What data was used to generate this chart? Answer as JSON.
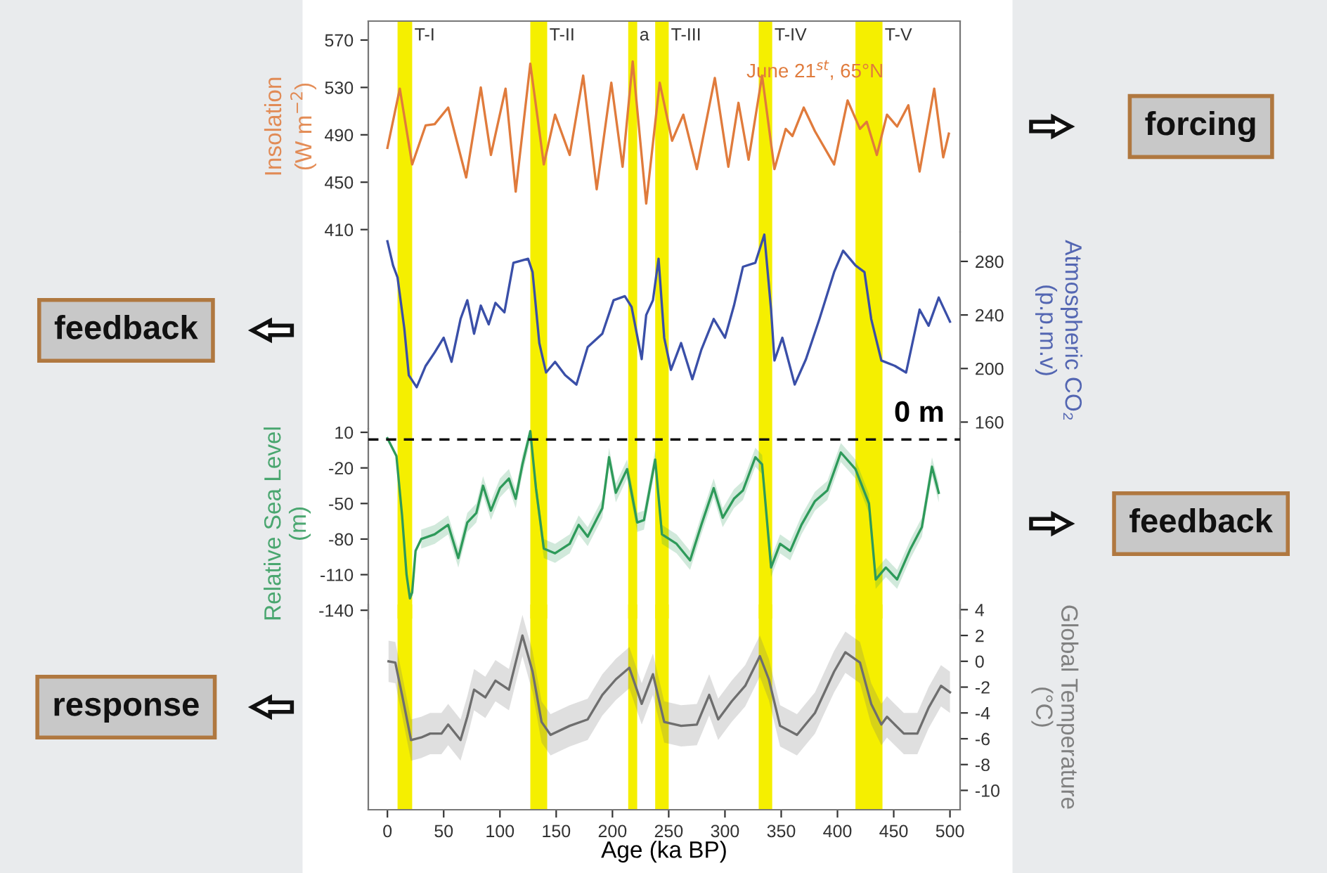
{
  "chart_data": [
    {
      "type": "line",
      "ylabel": "Insolation\n(W m$^{−2}$)",
      "xlim": [
        -17,
        509
      ],
      "ylim": [
        408,
        586
      ],
      "yticks": [
        410,
        450,
        490,
        530,
        570
      ],
      "tick_labels": "y",
      "series": [
        {
          "color": "#e07b3c",
          "x": [
            0,
            11,
            22,
            34,
            42,
            54,
            70,
            83,
            92,
            105,
            114,
            127,
            139,
            149,
            162,
            174,
            186,
            199,
            209,
            218,
            230,
            242,
            253,
            263,
            275,
            291,
            303,
            312,
            321,
            333,
            344,
            354,
            360,
            370,
            380,
            397,
            409,
            420,
            426,
            435,
            444,
            453,
            463,
            473,
            486,
            494,
            499
          ],
          "values": [
            479,
            529,
            465,
            498,
            499,
            513,
            454,
            530,
            473,
            529,
            442,
            550,
            465,
            507,
            473,
            540,
            444,
            534,
            463,
            552,
            432,
            534,
            485,
            507,
            461,
            538,
            463,
            517,
            469,
            540,
            461,
            495,
            489,
            513,
            493,
            465,
            519,
            495,
            501,
            473,
            507,
            497,
            515,
            459,
            529,
            471,
            491
          ]
        }
      ],
      "bands": [
        {
          "axis": "x",
          "from": 9,
          "to": 22,
          "label": "T-I",
          "color": "#f5ef00"
        },
        {
          "axis": "x",
          "from": 127,
          "to": 142,
          "label": "T-II",
          "color": "#f5ef00"
        },
        {
          "axis": "x",
          "from": 214,
          "to": 222,
          "label": "a",
          "color": "#f5ef00"
        },
        {
          "axis": "x",
          "from": 238,
          "to": 250,
          "label": "T-III",
          "color": "#f5ef00"
        },
        {
          "axis": "x",
          "from": 330,
          "to": 342,
          "label": "T-IV",
          "color": "#f5ef00"
        },
        {
          "axis": "x",
          "from": 416,
          "to": 440,
          "label": "T-V",
          "color": "#f5ef00"
        }
      ],
      "annotations": [
        "June 21$^{st}$, 65°N",
        "forcing"
      ]
    },
    {
      "type": "line",
      "y2label": "Atmospheric CO₂\n(p.p.m.v)",
      "xlim": [
        -17,
        509
      ],
      "y2lim": [
        155,
        302
      ],
      "y2ticks": [
        160,
        200,
        240,
        280
      ],
      "tick_labels": "y",
      "series": [
        {
          "color": "#3a4fa8",
          "axis": "y2",
          "x": [
            0,
            5,
            9,
            15,
            19,
            26,
            34,
            42,
            50,
            57,
            65,
            71,
            77,
            83,
            90,
            96,
            104,
            112,
            125,
            129,
            135,
            141,
            149,
            158,
            168,
            178,
            191,
            201,
            211,
            217,
            226,
            230,
            236,
            241,
            246,
            252,
            261,
            271,
            279,
            290,
            300,
            308,
            316,
            327,
            335,
            341,
            344,
            351,
            362,
            372,
            384,
            397,
            405,
            416,
            424,
            430,
            439,
            451,
            461,
            473,
            481,
            490,
            500
          ],
          "values": [
            295,
            277,
            268,
            230,
            195,
            186,
            202,
            212,
            223,
            205,
            237,
            251,
            226,
            247,
            233,
            249,
            242,
            279,
            282,
            272,
            219,
            197,
            205,
            195,
            188,
            216,
            226,
            251,
            254,
            246,
            207,
            240,
            251,
            282,
            223,
            199,
            219,
            192,
            214,
            237,
            223,
            247,
            276,
            279,
            300,
            244,
            206,
            223,
            188,
            207,
            237,
            272,
            288,
            277,
            272,
            237,
            206,
            202,
            197,
            244,
            232,
            253,
            235
          ]
        }
      ],
      "bands": [
        {
          "axis": "x",
          "from": 9,
          "to": 22,
          "color": "#f5ef00"
        },
        {
          "axis": "x",
          "from": 127,
          "to": 142,
          "color": "#f5ef00"
        },
        {
          "axis": "x",
          "from": 214,
          "to": 222,
          "color": "#f5ef00"
        },
        {
          "axis": "x",
          "from": 238,
          "to": 250,
          "color": "#f5ef00"
        },
        {
          "axis": "x",
          "from": 330,
          "to": 342,
          "color": "#f5ef00"
        },
        {
          "axis": "x",
          "from": 416,
          "to": 440,
          "color": "#f5ef00"
        }
      ],
      "annotations": [
        "feedback"
      ]
    },
    {
      "type": "line",
      "ylabel": "Relative Sea Level\n(m)",
      "xlim": [
        -17,
        509
      ],
      "ylim": [
        -147,
        13
      ],
      "yticks": [
        10,
        -20,
        -50,
        -80,
        -110,
        -140
      ],
      "tick_labels": "y",
      "series": [
        {
          "color": "#2e9a5a",
          "x": [
            0,
            8,
            13,
            17,
            20,
            22,
            25,
            30,
            42,
            54,
            63,
            71,
            79,
            85,
            92,
            100,
            108,
            114,
            120,
            127,
            132,
            139,
            149,
            162,
            170,
            178,
            191,
            197,
            203,
            213,
            222,
            228,
            238,
            244,
            257,
            269,
            279,
            290,
            298,
            308,
            316,
            327,
            333,
            341,
            349,
            358,
            368,
            380,
            391,
            403,
            416,
            428,
            434,
            443,
            453,
            465,
            475,
            484,
            490
          ],
          "values": [
            5,
            -10,
            -60,
            -110,
            -130,
            -125,
            -90,
            -80,
            -76,
            -68,
            -96,
            -66,
            -58,
            -35,
            -56,
            -37,
            -29,
            -46,
            -17,
            11,
            -37,
            -88,
            -92,
            -84,
            -68,
            -78,
            -54,
            -11,
            -41,
            -21,
            -66,
            -64,
            -13,
            -76,
            -84,
            -98,
            -68,
            -37,
            -62,
            -46,
            -39,
            -11,
            -17,
            -104,
            -84,
            -90,
            -68,
            -48,
            -39,
            -7,
            -21,
            -50,
            -114,
            -104,
            -114,
            -88,
            -70,
            -19,
            -41
          ],
          "upper": [
            null,
            null,
            null,
            null,
            null,
            null,
            null,
            -72,
            -68,
            -60,
            -88,
            -58,
            -50,
            -27,
            -48,
            -29,
            -21,
            -38,
            -9,
            13,
            -29,
            -80,
            -84,
            -76,
            -60,
            -70,
            -46,
            -3,
            -33,
            -13,
            -58,
            -56,
            -5,
            -68,
            -76,
            -90,
            -60,
            -29,
            -54,
            -38,
            -31,
            -3,
            -9,
            -96,
            -76,
            -82,
            -60,
            -40,
            -31,
            1,
            -13,
            -42,
            -106,
            -96,
            -106,
            -80,
            -62,
            -11,
            -33
          ],
          "lower": [
            null,
            null,
            null,
            null,
            null,
            null,
            null,
            -88,
            -84,
            -76,
            -104,
            -74,
            -66,
            -43,
            -64,
            -45,
            -37,
            -54,
            -25,
            3,
            -45,
            -96,
            -100,
            -92,
            -76,
            -86,
            -62,
            -19,
            -49,
            -29,
            -74,
            -72,
            -21,
            -84,
            -92,
            -106,
            -76,
            -45,
            -70,
            -54,
            -47,
            -19,
            -25,
            -112,
            -92,
            -98,
            -76,
            -56,
            -47,
            -15,
            -29,
            -58,
            -122,
            -112,
            -122,
            -96,
            -78,
            -27,
            -49
          ]
        }
      ],
      "ref_lines": [
        {
          "axis": "y",
          "value": 4,
          "label": "0 m",
          "line_style": "dashed",
          "color": "#111111"
        }
      ],
      "bands": [
        {
          "axis": "x",
          "from": 9,
          "to": 22,
          "color": "#f5ef00"
        },
        {
          "axis": "x",
          "from": 127,
          "to": 142,
          "color": "#f5ef00"
        },
        {
          "axis": "x",
          "from": 214,
          "to": 222,
          "color": "#f5ef00"
        },
        {
          "axis": "x",
          "from": 238,
          "to": 250,
          "color": "#f5ef00"
        },
        {
          "axis": "x",
          "from": 330,
          "to": 342,
          "color": "#f5ef00"
        },
        {
          "axis": "x",
          "from": 416,
          "to": 440,
          "color": "#f5ef00"
        }
      ],
      "annotations": [
        "feedback"
      ]
    },
    {
      "type": "line",
      "xlabel": "Age (ka BP)",
      "y2label": "Global Temperature\n(°C)",
      "xlim": [
        -17,
        509
      ],
      "xticks": [
        0,
        50,
        100,
        150,
        200,
        250,
        300,
        350,
        400,
        450,
        500
      ],
      "y2lim": [
        -11.5,
        4.4
      ],
      "y2ticks": [
        4,
        2,
        0,
        -2,
        -4,
        -6,
        -8,
        -10
      ],
      "series": [
        {
          "color": "#6e6e6e",
          "axis": "y2",
          "x": [
            1,
            7,
            13,
            21,
            30,
            38,
            48,
            54,
            65,
            71,
            77,
            87,
            96,
            108,
            120,
            129,
            137,
            145,
            162,
            178,
            191,
            203,
            215,
            226,
            236,
            246,
            261,
            275,
            286,
            294,
            306,
            318,
            331,
            339,
            349,
            364,
            380,
            397,
            407,
            420,
            430,
            439,
            444,
            459,
            471,
            481,
            492,
            500
          ],
          "values": [
            0.0,
            -0.1,
            -2.6,
            -6.1,
            -5.9,
            -5.6,
            -5.6,
            -4.9,
            -6.1,
            -4.3,
            -2.2,
            -2.8,
            -1.5,
            -2.2,
            2.0,
            -0.8,
            -4.7,
            -5.7,
            -5.0,
            -4.5,
            -2.6,
            -1.4,
            -0.5,
            -3.3,
            -1.0,
            -4.7,
            -5.0,
            -4.9,
            -2.6,
            -4.5,
            -3.1,
            -1.9,
            0.4,
            -1.4,
            -5.0,
            -5.7,
            -4.0,
            -0.8,
            0.7,
            -0.1,
            -3.3,
            -4.9,
            -4.3,
            -5.6,
            -5.6,
            -3.6,
            -1.9,
            -2.4
          ],
          "upper": [
            1.6,
            1.5,
            -1.0,
            -4.5,
            -4.3,
            -4.0,
            -4.0,
            -3.3,
            -4.5,
            -2.7,
            -0.6,
            -1.2,
            0.1,
            -0.6,
            3.6,
            0.8,
            -3.1,
            -4.1,
            -3.4,
            -2.9,
            -1.0,
            0.2,
            1.1,
            -1.7,
            0.6,
            -3.1,
            -3.4,
            -3.3,
            -1.0,
            -2.9,
            -1.5,
            -0.3,
            2.0,
            0.2,
            -3.4,
            -4.1,
            -2.4,
            0.8,
            2.3,
            1.5,
            -1.7,
            -3.3,
            -2.7,
            -4.0,
            -4.0,
            -2.0,
            -0.3,
            -0.8
          ],
          "lower": [
            -1.6,
            -1.7,
            -4.2,
            -7.7,
            -7.5,
            -7.2,
            -7.2,
            -6.5,
            -7.7,
            -5.9,
            -3.8,
            -4.4,
            -3.1,
            -3.8,
            0.4,
            -2.4,
            -6.3,
            -7.3,
            -6.6,
            -6.1,
            -4.2,
            -3.0,
            -2.1,
            -4.9,
            -2.6,
            -6.3,
            -6.6,
            -6.5,
            -4.2,
            -6.1,
            -4.7,
            -3.5,
            -1.2,
            -3.0,
            -6.6,
            -7.3,
            -5.6,
            -2.4,
            -0.9,
            -1.7,
            -4.9,
            -6.5,
            -5.9,
            -7.2,
            -7.2,
            -5.2,
            -3.5,
            -4.0
          ]
        }
      ],
      "bands": [
        {
          "axis": "x",
          "from": 9,
          "to": 22,
          "color": "#f5ef00"
        },
        {
          "axis": "x",
          "from": 127,
          "to": 142,
          "color": "#f5ef00"
        },
        {
          "axis": "x",
          "from": 214,
          "to": 222,
          "color": "#f5ef00"
        },
        {
          "axis": "x",
          "from": 238,
          "to": 250,
          "color": "#f5ef00"
        },
        {
          "axis": "x",
          "from": 330,
          "to": 342,
          "color": "#f5ef00"
        },
        {
          "axis": "x",
          "from": 416,
          "to": 440,
          "color": "#f5ef00"
        }
      ],
      "annotations": [
        "response"
      ]
    }
  ]
}
